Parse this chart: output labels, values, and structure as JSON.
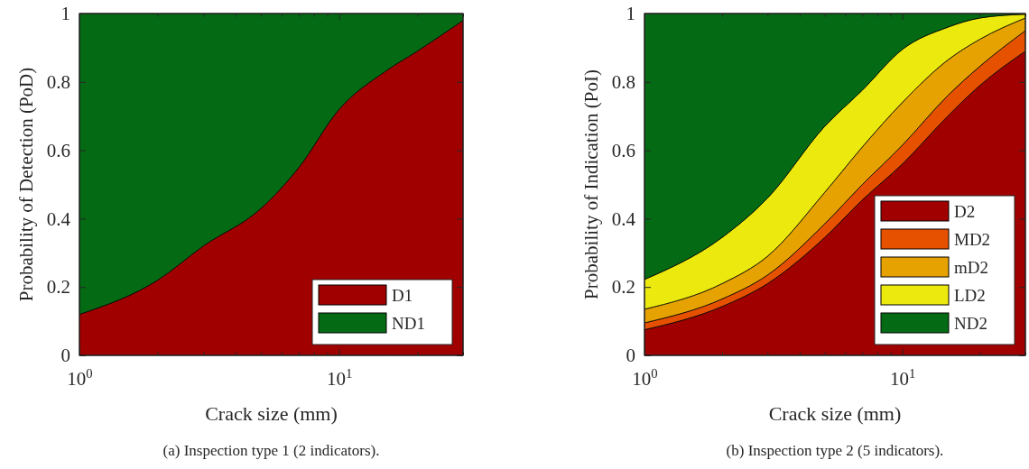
{
  "chart_data": [
    {
      "type": "area",
      "stacked": true,
      "title": "(a) Inspection type 1 (2 indicators).",
      "xlabel": "Crack size (mm)",
      "ylabel": "Probability of Detection (PoD)",
      "log": "x",
      "legend": "bottom right",
      "x": [
        1,
        2,
        3,
        5,
        7,
        10,
        15,
        20,
        30
      ],
      "series": [
        {
          "name": "D1",
          "color": "#a00000",
          "values": [
            0.12,
            0.22,
            0.32,
            0.43,
            0.55,
            0.72,
            0.83,
            0.89,
            0.98
          ]
        },
        {
          "name": "ND1",
          "color": "#046b14",
          "values": [
            0.88,
            0.78,
            0.68,
            0.57,
            0.45,
            0.28,
            0.17,
            0.11,
            0.02
          ]
        }
      ],
      "xlim": [
        1,
        30
      ],
      "xticks": [
        {
          "value": 1,
          "label": "10$^{0}$"
        },
        {
          "value": 2,
          "label": null
        },
        {
          "value": 3,
          "label": null
        },
        {
          "value": 4,
          "label": null
        },
        {
          "value": 5,
          "label": null
        },
        {
          "value": 6,
          "label": null
        },
        {
          "value": 7,
          "label": null
        },
        {
          "value": 8,
          "label": null
        },
        {
          "value": 9,
          "label": null
        },
        {
          "value": 10,
          "label": "10$^{1}$"
        },
        {
          "value": 20,
          "label": null
        },
        {
          "value": 30,
          "label": null
        }
      ],
      "ylim": [
        0,
        1
      ],
      "yticks": [
        0,
        0.2,
        0.4,
        0.6,
        0.8,
        1
      ]
    },
    {
      "type": "area",
      "stacked": true,
      "title": "(b) Inspection type 2 (5 indicators).",
      "xlabel": "Crack size (mm)",
      "ylabel": "Probability of Indication (PoI)",
      "log": "x",
      "legend": "bottom right",
      "x": [
        1,
        2,
        3,
        5,
        7,
        10,
        15,
        20,
        30
      ],
      "series": [
        {
          "name": "D2",
          "color": "#a00000",
          "values": [
            0.075,
            0.143,
            0.21,
            0.345,
            0.455,
            0.56,
            0.7,
            0.79,
            0.89
          ]
        },
        {
          "name": "MD2",
          "color": "#e65100",
          "values": [
            0.02,
            0.022,
            0.025,
            0.04,
            0.045,
            0.055,
            0.06,
            0.056,
            0.06
          ]
        },
        {
          "name": "mD2",
          "color": "#e6a200",
          "values": [
            0.04,
            0.045,
            0.055,
            0.092,
            0.11,
            0.125,
            0.104,
            0.079,
            0.037
          ]
        },
        {
          "name": "LD2",
          "color": "#ece90e",
          "values": [
            0.087,
            0.135,
            0.17,
            0.193,
            0.166,
            0.155,
            0.096,
            0.062,
            0.011
          ]
        },
        {
          "name": "ND2",
          "color": "#046b14",
          "values": [
            0.778,
            0.655,
            0.54,
            0.33,
            0.224,
            0.105,
            0.04,
            0.013,
            0.002
          ]
        }
      ],
      "xlim": [
        1,
        30
      ],
      "xticks": [
        {
          "value": 1,
          "label": "10$^{0}$"
        },
        {
          "value": 2,
          "label": null
        },
        {
          "value": 3,
          "label": null
        },
        {
          "value": 4,
          "label": null
        },
        {
          "value": 5,
          "label": null
        },
        {
          "value": 6,
          "label": null
        },
        {
          "value": 7,
          "label": null
        },
        {
          "value": 8,
          "label": null
        },
        {
          "value": 9,
          "label": null
        },
        {
          "value": 10,
          "label": "10$^{1}$"
        },
        {
          "value": 20,
          "label": null
        },
        {
          "value": 30,
          "label": null
        }
      ],
      "ylim": [
        0,
        1
      ],
      "yticks": [
        0,
        0.2,
        0.4,
        0.6,
        0.8,
        1
      ]
    }
  ]
}
